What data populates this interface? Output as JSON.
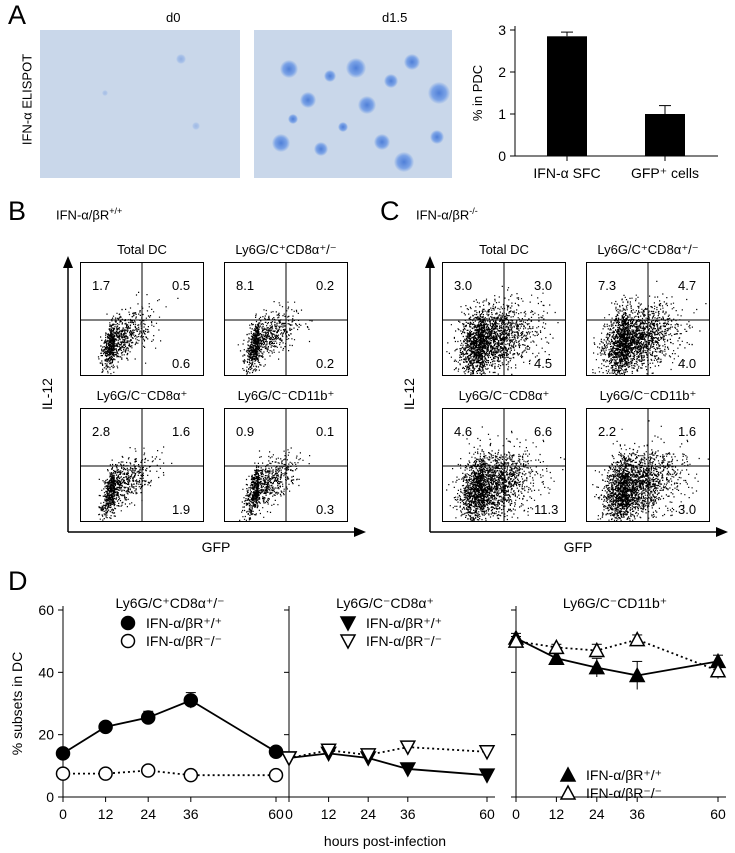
{
  "panelA": {
    "label": "A",
    "ylabel": "IFN-α ELISPOT",
    "wells": [
      {
        "label": "d0"
      },
      {
        "label": "d1.5"
      }
    ]
  },
  "panelB": {
    "label": "B",
    "title": "IFN-α/βR",
    "title_sup": "+/+",
    "yaxis": "IL-12",
    "xaxis": "GFP",
    "plots": [
      {
        "title": "Total DC",
        "ul": "1.7",
        "ur": "0.5",
        "lr": "0.6"
      },
      {
        "title": "Ly6G/C⁺CD8α⁺/⁻",
        "ul": "8.1",
        "ur": "0.2",
        "lr": "0.2"
      },
      {
        "title": "Ly6G/C⁻CD8α⁺",
        "ul": "2.8",
        "ur": "1.6",
        "lr": "1.9"
      },
      {
        "title": "Ly6G/C⁻CD11b⁺",
        "ul": "0.9",
        "ur": "0.1",
        "lr": "0.3"
      }
    ]
  },
  "panelC": {
    "label": "C",
    "title": "IFN-α/βR",
    "title_sup": "-/-",
    "yaxis": "IL-12",
    "xaxis": "GFP",
    "plots": [
      {
        "title": "Total DC",
        "ul": "3.0",
        "ur": "3.0",
        "lr": "4.5"
      },
      {
        "title": "Ly6G/C⁺CD8α⁺/⁻",
        "ul": "7.3",
        "ur": "4.7",
        "lr": "4.0"
      },
      {
        "title": "Ly6G/C⁻CD8α⁺",
        "ul": "4.6",
        "ur": "6.6",
        "lr": "11.3"
      },
      {
        "title": "Ly6G/C⁻CD11b⁺",
        "ul": "2.2",
        "ur": "1.6",
        "lr": "3.0"
      }
    ]
  },
  "panelD": {
    "label": "D",
    "xlabel": "hours post-infection",
    "ylabel": "% subsets in DC"
  },
  "colors": {
    "spot": "#4f7fd8",
    "well": "#c9d7ea",
    "bar": "#000000"
  },
  "chart_data": [
    {
      "type": "bar",
      "categories": [
        "IFN-α SFC",
        "GFP⁺ cells"
      ],
      "values": [
        2.85,
        1.0
      ],
      "errors": [
        0.1,
        0.2
      ],
      "ylabel": "% in PDC",
      "ylim": [
        0,
        3
      ],
      "yticks": [
        0,
        1,
        2,
        3
      ]
    },
    {
      "type": "line",
      "title": "Ly6G/C⁺CD8α⁺/⁻",
      "x": [
        0,
        12,
        24,
        36,
        60
      ],
      "xticks": [
        0,
        12,
        24,
        36,
        60
      ],
      "ylim": [
        0,
        60
      ],
      "yticks": [
        0,
        20,
        40,
        60
      ],
      "legend": "top-left",
      "series": [
        {
          "name": "IFN-α/βR⁺/⁺",
          "values": [
            14,
            22.5,
            25.5,
            31,
            14.5
          ],
          "errors": [
            1.5,
            1.5,
            2,
            2.5,
            1.5
          ],
          "marker": "circle",
          "fill": "filled",
          "line": "solid"
        },
        {
          "name": "IFN-α/βR⁻/⁻",
          "values": [
            7.5,
            7.5,
            8.5,
            7,
            7
          ],
          "errors": [
            1,
            1,
            1,
            1.5,
            0.5
          ],
          "marker": "circle",
          "fill": "open",
          "line": "dotted"
        }
      ]
    },
    {
      "type": "line",
      "title": "Ly6G/C⁻CD8α⁺",
      "x": [
        0,
        12,
        24,
        36,
        60
      ],
      "xticks": [
        0,
        12,
        24,
        36,
        60
      ],
      "ylim": [
        0,
        60
      ],
      "yticks": [
        0,
        20,
        40,
        60
      ],
      "legend": "top-left",
      "series": [
        {
          "name": "IFN-α/βR⁺/⁺",
          "values": [
            12.5,
            14,
            12.5,
            9,
            7
          ],
          "errors": [
            1,
            1,
            2,
            1,
            1
          ],
          "marker": "triangle-down",
          "fill": "filled",
          "line": "solid"
        },
        {
          "name": "IFN-α/βR⁻/⁻",
          "values": [
            12.5,
            15,
            13.5,
            16,
            14.5
          ],
          "errors": [
            1,
            1,
            1,
            1,
            1
          ],
          "marker": "triangle-down",
          "fill": "open",
          "line": "dotted"
        }
      ]
    },
    {
      "type": "line",
      "title": "Ly6G/C⁻CD11b⁺",
      "x": [
        0,
        12,
        24,
        36,
        60
      ],
      "xticks": [
        0,
        12,
        24,
        36,
        60
      ],
      "ylim": [
        0,
        60
      ],
      "yticks": [
        0,
        20,
        40,
        60
      ],
      "legend": "bottom-right",
      "series": [
        {
          "name": "IFN-α/βR⁺/⁺",
          "values": [
            51,
            44.5,
            41.5,
            39,
            43.5
          ],
          "errors": [
            1.5,
            1.5,
            3,
            4.5,
            2
          ],
          "marker": "triangle-up",
          "fill": "filled",
          "line": "solid"
        },
        {
          "name": "IFN-α/βR⁻/⁻",
          "values": [
            50,
            48,
            47,
            50.5,
            40.5
          ],
          "errors": [
            1.5,
            1,
            2,
            1.5,
            2.5
          ],
          "marker": "triangle-up",
          "fill": "open",
          "line": "dotted"
        }
      ]
    }
  ]
}
